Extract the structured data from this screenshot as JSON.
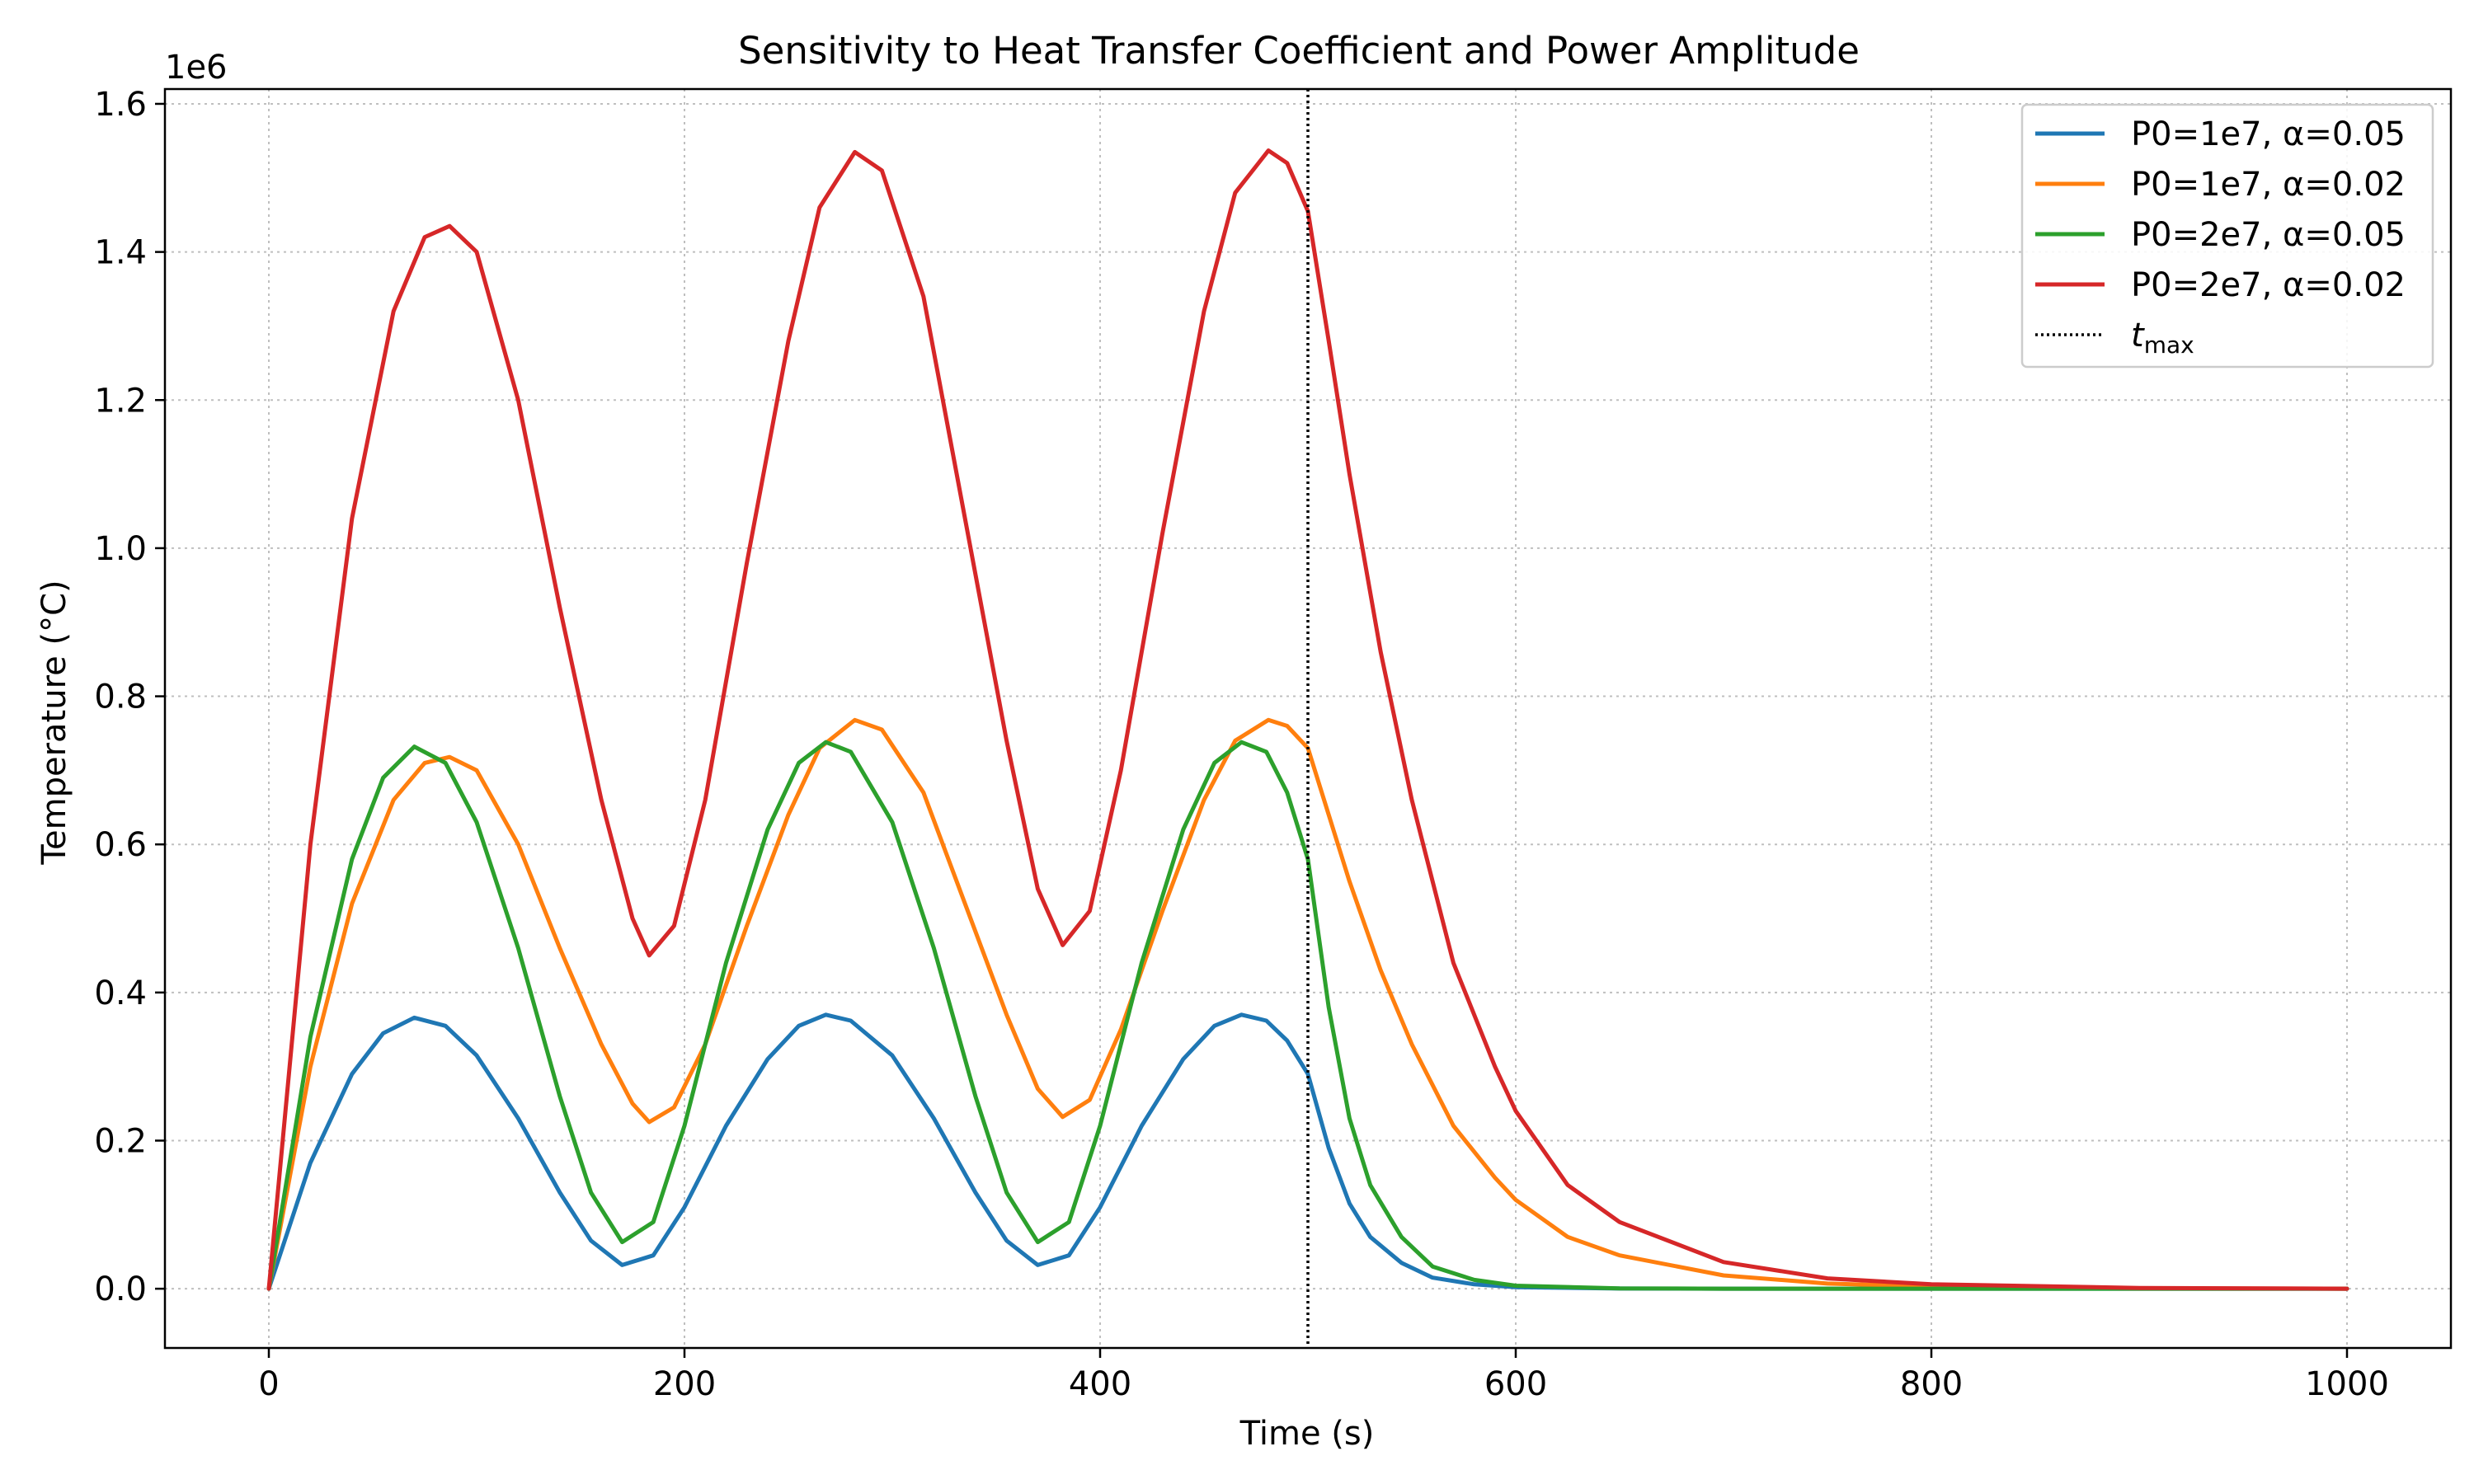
{
  "chart_data": {
    "type": "line",
    "title": "Sensitivity to Heat Transfer Coefficient and Power Amplitude",
    "xlabel": "Time (s)",
    "ylabel": "Temperature (°C)",
    "y_offset_label": "1e6",
    "xlim": [
      -50,
      1050
    ],
    "ylim": [
      -0.08,
      1.62
    ],
    "y_scale_note": "values in units of 1e6",
    "x_ticks": [
      0,
      200,
      400,
      600,
      800,
      1000
    ],
    "x_tick_labels": [
      "0",
      "200",
      "400",
      "600",
      "800",
      "1000"
    ],
    "y_ticks": [
      0.0,
      0.2,
      0.4,
      0.6,
      0.8,
      1.0,
      1.2,
      1.4,
      1.6
    ],
    "y_tick_labels": [
      "0.0",
      "0.2",
      "0.4",
      "0.6",
      "0.8",
      "1.0",
      "1.2",
      "1.4",
      "1.6"
    ],
    "grid": true,
    "legend_position": "top-right",
    "vline": {
      "x": 500,
      "label": "t",
      "label_sub": "max",
      "color": "#000000",
      "style": "dotted"
    },
    "series": [
      {
        "name": "P0=1e7, α=0.05",
        "color": "#1f77b4",
        "points": [
          [
            0,
            0
          ],
          [
            20,
            0.17
          ],
          [
            40,
            0.29
          ],
          [
            55,
            0.345
          ],
          [
            70,
            0.366
          ],
          [
            85,
            0.355
          ],
          [
            100,
            0.315
          ],
          [
            120,
            0.23
          ],
          [
            140,
            0.13
          ],
          [
            155,
            0.065
          ],
          [
            170,
            0.032
          ],
          [
            185,
            0.045
          ],
          [
            200,
            0.11
          ],
          [
            220,
            0.22
          ],
          [
            240,
            0.31
          ],
          [
            255,
            0.355
          ],
          [
            268,
            0.37
          ],
          [
            280,
            0.362
          ],
          [
            300,
            0.315
          ],
          [
            320,
            0.23
          ],
          [
            340,
            0.13
          ],
          [
            355,
            0.065
          ],
          [
            370,
            0.032
          ],
          [
            385,
            0.045
          ],
          [
            400,
            0.11
          ],
          [
            420,
            0.22
          ],
          [
            440,
            0.31
          ],
          [
            455,
            0.355
          ],
          [
            468,
            0.37
          ],
          [
            480,
            0.362
          ],
          [
            490,
            0.335
          ],
          [
            500,
            0.29
          ],
          [
            510,
            0.19
          ],
          [
            520,
            0.115
          ],
          [
            530,
            0.07
          ],
          [
            545,
            0.035
          ],
          [
            560,
            0.015
          ],
          [
            580,
            0.006
          ],
          [
            600,
            0.002
          ],
          [
            650,
            0.0003
          ],
          [
            700,
            0
          ],
          [
            800,
            0
          ],
          [
            900,
            0
          ],
          [
            1000,
            0
          ]
        ]
      },
      {
        "name": "P0=1e7, α=0.02",
        "color": "#ff7f0e",
        "points": [
          [
            0,
            0
          ],
          [
            20,
            0.3
          ],
          [
            40,
            0.52
          ],
          [
            60,
            0.66
          ],
          [
            75,
            0.71
          ],
          [
            87,
            0.718
          ],
          [
            100,
            0.7
          ],
          [
            120,
            0.6
          ],
          [
            140,
            0.46
          ],
          [
            160,
            0.33
          ],
          [
            175,
            0.25
          ],
          [
            183,
            0.225
          ],
          [
            195,
            0.245
          ],
          [
            210,
            0.33
          ],
          [
            230,
            0.49
          ],
          [
            250,
            0.64
          ],
          [
            265,
            0.73
          ],
          [
            282,
            0.768
          ],
          [
            295,
            0.755
          ],
          [
            315,
            0.67
          ],
          [
            335,
            0.52
          ],
          [
            355,
            0.37
          ],
          [
            370,
            0.27
          ],
          [
            382,
            0.232
          ],
          [
            395,
            0.255
          ],
          [
            410,
            0.35
          ],
          [
            430,
            0.51
          ],
          [
            450,
            0.66
          ],
          [
            465,
            0.74
          ],
          [
            481,
            0.768
          ],
          [
            490,
            0.76
          ],
          [
            500,
            0.73
          ],
          [
            510,
            0.64
          ],
          [
            520,
            0.55
          ],
          [
            535,
            0.43
          ],
          [
            550,
            0.33
          ],
          [
            570,
            0.22
          ],
          [
            590,
            0.15
          ],
          [
            600,
            0.12
          ],
          [
            625,
            0.07
          ],
          [
            650,
            0.045
          ],
          [
            700,
            0.018
          ],
          [
            750,
            0.007
          ],
          [
            800,
            0.003
          ],
          [
            900,
            0.0005
          ],
          [
            1000,
            0
          ]
        ]
      },
      {
        "name": "P0=2e7, α=0.05",
        "color": "#2ca02c",
        "points": [
          [
            0,
            0
          ],
          [
            20,
            0.34
          ],
          [
            40,
            0.58
          ],
          [
            55,
            0.69
          ],
          [
            70,
            0.732
          ],
          [
            85,
            0.71
          ],
          [
            100,
            0.63
          ],
          [
            120,
            0.46
          ],
          [
            140,
            0.26
          ],
          [
            155,
            0.13
          ],
          [
            170,
            0.063
          ],
          [
            185,
            0.09
          ],
          [
            200,
            0.22
          ],
          [
            220,
            0.44
          ],
          [
            240,
            0.62
          ],
          [
            255,
            0.71
          ],
          [
            268,
            0.738
          ],
          [
            280,
            0.725
          ],
          [
            300,
            0.63
          ],
          [
            320,
            0.46
          ],
          [
            340,
            0.26
          ],
          [
            355,
            0.13
          ],
          [
            370,
            0.063
          ],
          [
            385,
            0.09
          ],
          [
            400,
            0.22
          ],
          [
            420,
            0.44
          ],
          [
            440,
            0.62
          ],
          [
            455,
            0.71
          ],
          [
            468,
            0.738
          ],
          [
            480,
            0.725
          ],
          [
            490,
            0.67
          ],
          [
            500,
            0.58
          ],
          [
            510,
            0.38
          ],
          [
            520,
            0.23
          ],
          [
            530,
            0.14
          ],
          [
            545,
            0.07
          ],
          [
            560,
            0.03
          ],
          [
            580,
            0.012
          ],
          [
            600,
            0.004
          ],
          [
            650,
            0.0005
          ],
          [
            700,
            0
          ],
          [
            800,
            0
          ],
          [
            900,
            0
          ],
          [
            1000,
            0
          ]
        ]
      },
      {
        "name": "P0=2e7, α=0.02",
        "color": "#d62728",
        "points": [
          [
            0,
            0
          ],
          [
            20,
            0.6
          ],
          [
            40,
            1.04
          ],
          [
            60,
            1.32
          ],
          [
            75,
            1.42
          ],
          [
            87,
            1.435
          ],
          [
            100,
            1.4
          ],
          [
            120,
            1.2
          ],
          [
            140,
            0.92
          ],
          [
            160,
            0.66
          ],
          [
            175,
            0.5
          ],
          [
            183,
            0.45
          ],
          [
            195,
            0.49
          ],
          [
            210,
            0.66
          ],
          [
            230,
            0.98
          ],
          [
            250,
            1.28
          ],
          [
            265,
            1.46
          ],
          [
            282,
            1.535
          ],
          [
            295,
            1.51
          ],
          [
            315,
            1.34
          ],
          [
            335,
            1.04
          ],
          [
            355,
            0.74
          ],
          [
            370,
            0.54
          ],
          [
            382,
            0.464
          ],
          [
            395,
            0.51
          ],
          [
            410,
            0.7
          ],
          [
            430,
            1.02
          ],
          [
            450,
            1.32
          ],
          [
            465,
            1.48
          ],
          [
            481,
            1.537
          ],
          [
            490,
            1.52
          ],
          [
            500,
            1.455
          ],
          [
            510,
            1.28
          ],
          [
            520,
            1.1
          ],
          [
            535,
            0.86
          ],
          [
            550,
            0.66
          ],
          [
            570,
            0.44
          ],
          [
            590,
            0.3
          ],
          [
            600,
            0.24
          ],
          [
            625,
            0.14
          ],
          [
            650,
            0.09
          ],
          [
            700,
            0.036
          ],
          [
            750,
            0.014
          ],
          [
            800,
            0.006
          ],
          [
            900,
            0.001
          ],
          [
            1000,
            0
          ]
        ]
      }
    ]
  }
}
